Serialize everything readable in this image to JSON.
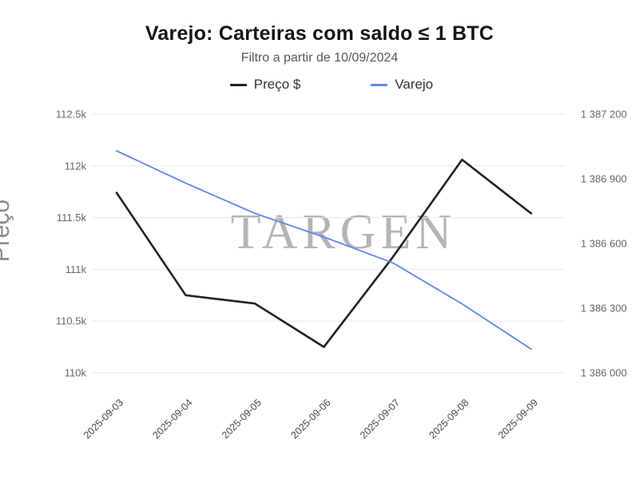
{
  "chart_data": {
    "type": "line",
    "title": "Varejo: Carteiras com saldo ≤ 1 BTC",
    "subtitle": "Filtro a partir de 10/09/2024",
    "watermark": "TARGEN",
    "legend_position": "top",
    "grid": "horizontal",
    "categories": [
      "2025-09-03",
      "2025-09-04",
      "2025-09-05",
      "2025-09-06",
      "2025-09-07",
      "2025-09-08",
      "2025-09-09"
    ],
    "series": [
      {
        "name": "Preço $",
        "axis": "left",
        "color": "#222222",
        "values": [
          111740,
          110750,
          110670,
          110250,
          111120,
          112060,
          111540
        ]
      },
      {
        "name": "Varejo",
        "axis": "right",
        "color": "#5b87ea",
        "values": [
          1387030,
          1386880,
          1386740,
          1386630,
          1386510,
          1386320,
          1386110
        ]
      }
    ],
    "y_axis_left": {
      "title": "Preço",
      "min": 110000,
      "max": 112500,
      "ticks": [
        {
          "value": 112500,
          "label": "112.5k"
        },
        {
          "value": 112000,
          "label": "112k"
        },
        {
          "value": 111500,
          "label": "111.5k"
        },
        {
          "value": 111000,
          "label": "111k"
        },
        {
          "value": 110500,
          "label": "110.5k"
        },
        {
          "value": 110000,
          "label": "110k"
        }
      ]
    },
    "y_axis_right": {
      "min": 1386000,
      "max": 1387200,
      "ticks": [
        {
          "value": 1387200,
          "label": "1 387 200"
        },
        {
          "value": 1386900,
          "label": "1 386 900"
        },
        {
          "value": 1386600,
          "label": "1 386 600"
        },
        {
          "value": 1386300,
          "label": "1 386 300"
        },
        {
          "value": 1386000,
          "label": "1 386 000"
        }
      ]
    }
  },
  "colors": {
    "grid": "#e8e8e8",
    "accent_blue": "#5b87ea",
    "accent_black": "#222222"
  }
}
